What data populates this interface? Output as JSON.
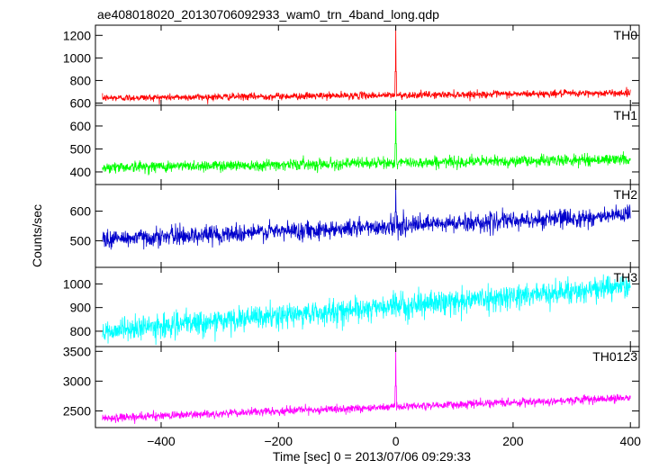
{
  "title": "ae408018020_20130706092933_wam0_trn_4band_long.qdp",
  "ylabel": "Counts/sec",
  "xlabel": "Time [sec] 0 = 2013/07/06 09:29:33",
  "chart_data": {
    "type": "line",
    "title": "ae408018020_20130706092933_wam0_trn_4band_long.qdp",
    "xlabel": "Time [sec] 0 = 2013/07/06 09:29:33",
    "ylabel": "Counts/sec",
    "xlim": [
      -512,
      415
    ],
    "x_ticks": [
      -400,
      -200,
      0,
      200,
      400
    ],
    "x_tick_labels": [
      "−400",
      "−200",
      "0",
      "200",
      "400"
    ],
    "grid": false,
    "shared_x": true,
    "series": [
      {
        "name": "TH0",
        "color": "#ff0000",
        "ylim": [
          580,
          1290
        ],
        "y_ticks": [
          600,
          800,
          1000,
          1200
        ],
        "x_range": [
          -500,
          400
        ],
        "trend": [
          [
            -500,
            645
          ],
          [
            400,
            690
          ]
        ],
        "noise_amplitude": 28,
        "peak": {
          "x": 0,
          "y": 1270
        }
      },
      {
        "name": "TH1",
        "color": "#00ff00",
        "ylim": [
          345,
          690
        ],
        "y_ticks": [
          400,
          500,
          600
        ],
        "x_range": [
          -500,
          400
        ],
        "trend": [
          [
            -500,
            420
          ],
          [
            400,
            455
          ]
        ],
        "noise_amplitude": 22,
        "peak": {
          "x": 0,
          "y": 680
        }
      },
      {
        "name": "TH2",
        "color": "#0000cc",
        "ylim": [
          410,
          690
        ],
        "y_ticks": [
          500,
          600
        ],
        "x_range": [
          -500,
          400
        ],
        "trend": [
          [
            -500,
            505
          ],
          [
            400,
            585
          ]
        ],
        "noise_amplitude": 28,
        "peak": {
          "x": 0,
          "y": 685
        }
      },
      {
        "name": "TH3",
        "color": "#00ffff",
        "ylim": [
          735,
          1070
        ],
        "y_ticks": [
          800,
          900,
          1000
        ],
        "x_range": [
          -500,
          400
        ],
        "trend": [
          [
            -500,
            800
          ],
          [
            400,
            990
          ]
        ],
        "noise_amplitude": 45,
        "peak": null
      },
      {
        "name": "TH0123",
        "color": "#ff00ff",
        "ylim": [
          2220,
          3580
        ],
        "y_ticks": [
          2500,
          3000,
          3500
        ],
        "x_range": [
          -500,
          400
        ],
        "trend": [
          [
            -500,
            2380
          ],
          [
            400,
            2720
          ]
        ],
        "noise_amplitude": 60,
        "peak": {
          "x": 0,
          "y": 3560
        }
      }
    ]
  }
}
